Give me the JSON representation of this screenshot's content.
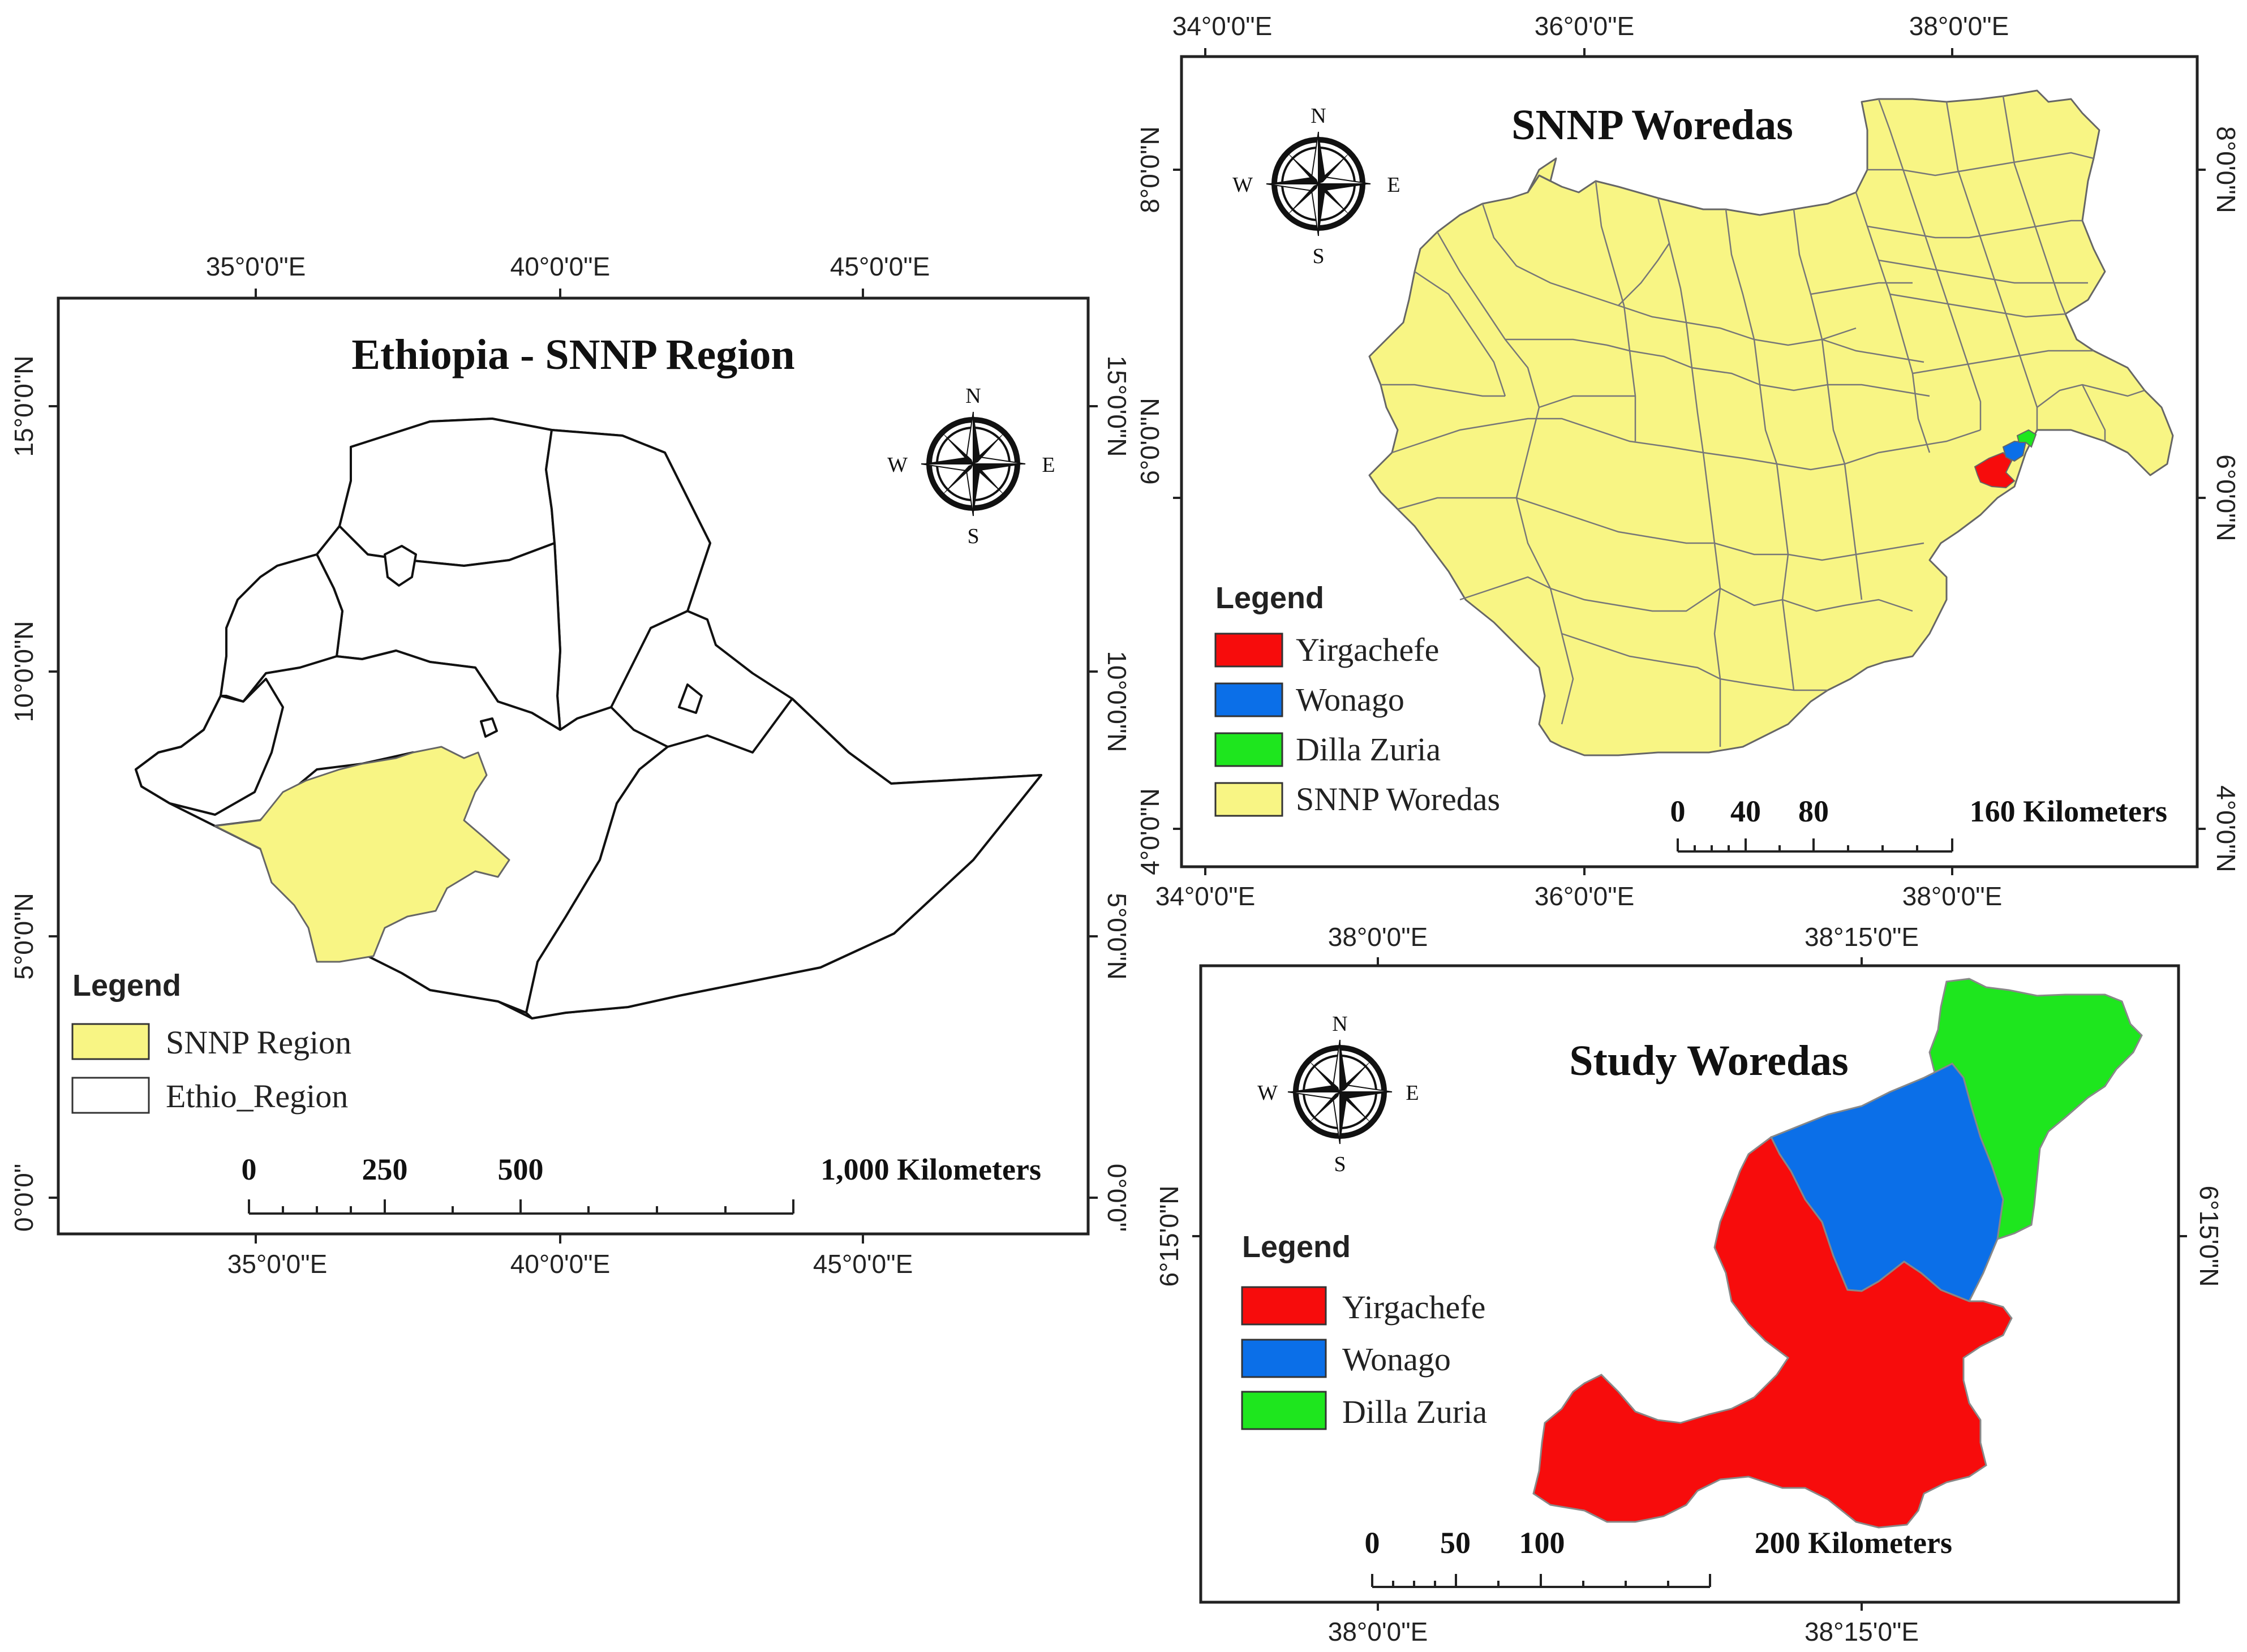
{
  "colors": {
    "snnp": "#f8f584",
    "yirgachefe": "#f70c0c",
    "wonago": "#0b6fe8",
    "dilla_zuria": "#1ee61e",
    "ethio_region": "#ffffff"
  },
  "panel_ethiopia": {
    "title": "Ethiopia - SNNP Region",
    "lon_labels": [
      "35°0'0\"E",
      "40°0'0\"E",
      "45°0'0\"E"
    ],
    "lat_labels": [
      "15°0'0\"N",
      "10°0'0\"N",
      "5°0'0\"N",
      "0°0'0\""
    ],
    "legend_title": "Legend",
    "legend": [
      {
        "label": "SNNP Region",
        "color": "#f8f584"
      },
      {
        "label": "Ethio_Region",
        "color": "#ffffff"
      }
    ],
    "scale_ticks": [
      "0",
      "250",
      "500",
      "1,000 Kilometers"
    ],
    "compass": {
      "n": "N",
      "s": "S",
      "e": "E",
      "w": "W"
    }
  },
  "panel_snnp": {
    "title": "SNNP Woredas",
    "lon_labels": [
      "34°0'0\"E",
      "36°0'0\"E",
      "38°0'0\"E"
    ],
    "lat_labels_right": [
      "8°0'0\"N",
      "6°0'0\"N",
      "4°0'0\"N"
    ],
    "lat_labels_left": [
      "8°0'0\"N",
      "6°0'0\"N",
      "4°0'0\"N"
    ],
    "legend_title": "Legend",
    "legend": [
      {
        "label": "Yirgachefe",
        "color": "#f70c0c"
      },
      {
        "label": "Wonago",
        "color": "#0b6fe8"
      },
      {
        "label": "Dilla Zuria",
        "color": "#1ee61e"
      },
      {
        "label": "SNNP Woredas",
        "color": "#f8f584"
      }
    ],
    "scale_ticks": [
      "0",
      "40",
      "80",
      "160 Kilometers"
    ],
    "compass": {
      "n": "N",
      "s": "S",
      "e": "E",
      "w": "W"
    }
  },
  "panel_study": {
    "title": "Study Woredas",
    "lon_labels": [
      "38°0'0\"E",
      "38°15'0\"E"
    ],
    "lat_labels": [
      "6°15'0\"N"
    ],
    "legend_title": "Legend",
    "legend": [
      {
        "label": "Yirgachefe",
        "color": "#f70c0c"
      },
      {
        "label": "Wonago",
        "color": "#0b6fe8"
      },
      {
        "label": "Dilla Zuria",
        "color": "#1ee61e"
      }
    ],
    "scale_ticks": [
      "0",
      "50",
      "100",
      "200 Kilometers"
    ],
    "compass": {
      "n": "N",
      "s": "S",
      "e": "E",
      "w": "W"
    }
  }
}
